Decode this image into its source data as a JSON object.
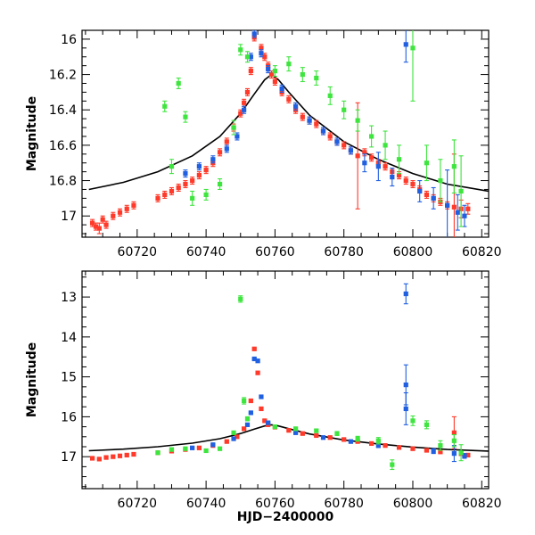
{
  "chart_data": [
    {
      "type": "scatter",
      "panel": "top",
      "title": "",
      "xlabel": "",
      "ylabel": "Magnitude",
      "xlim": [
        60704,
        60822
      ],
      "ylim": [
        17.12,
        15.95
      ],
      "y_inverted": true,
      "x_ticks": [
        60720,
        60740,
        60760,
        60780,
        60800,
        60820
      ],
      "y_ticks": [
        16,
        16.2,
        16.4,
        16.6,
        16.8,
        17
      ],
      "y_tick_labels": [
        "16",
        "16.2",
        "16.4",
        "16.6",
        "16.8",
        "17"
      ],
      "grid": false,
      "legend": "none",
      "model_curve": {
        "color": "#000000",
        "x": [
          60706,
          60716,
          60726,
          60736,
          60744,
          60750,
          60754,
          60757,
          60759,
          60761,
          60764,
          60770,
          60780,
          60790,
          60800,
          60810,
          60822
        ],
        "y": [
          16.85,
          16.81,
          16.75,
          16.66,
          16.55,
          16.42,
          16.31,
          16.23,
          16.2,
          16.23,
          16.3,
          16.43,
          16.58,
          16.68,
          16.76,
          16.82,
          16.86
        ]
      },
      "series": [
        {
          "color": "#ff3a2a",
          "x": [
            60707,
            60708,
            60709,
            60710,
            60711,
            60713,
            60715,
            60717,
            60719,
            60726,
            60728,
            60730,
            60732,
            60734,
            60736,
            60738,
            60740,
            60742,
            60744,
            60746,
            60748,
            60750,
            60751,
            60752,
            60753,
            60754,
            60756,
            60757,
            60758,
            60759,
            60760,
            60762,
            60764,
            60766,
            60768,
            60770,
            60772,
            60774,
            60776,
            60778,
            60780,
            60782,
            60784,
            60786,
            60788,
            60790,
            60792,
            60794,
            60796,
            60798,
            60800,
            60802,
            60804,
            60806,
            60808,
            60810,
            60812,
            60814,
            60816
          ],
          "y": [
            17.04,
            17.06,
            17.07,
            17.02,
            17.05,
            17.0,
            16.98,
            16.96,
            16.94,
            16.9,
            16.88,
            16.86,
            16.84,
            16.82,
            16.8,
            16.77,
            16.74,
            16.7,
            16.64,
            16.58,
            16.5,
            16.42,
            16.36,
            16.3,
            16.18,
            15.99,
            16.05,
            16.1,
            16.15,
            16.2,
            16.24,
            16.3,
            16.34,
            16.4,
            16.44,
            16.46,
            16.48,
            16.52,
            16.55,
            16.58,
            16.6,
            16.63,
            16.66,
            16.64,
            16.67,
            16.7,
            16.72,
            16.75,
            16.77,
            16.8,
            16.82,
            16.85,
            16.88,
            16.9,
            16.92,
            16.94,
            16.95,
            16.96,
            16.96
          ],
          "err": [
            0.02,
            0.02,
            0.03,
            0.02,
            0.02,
            0.02,
            0.02,
            0.02,
            0.02,
            0.02,
            0.02,
            0.02,
            0.02,
            0.02,
            0.02,
            0.02,
            0.02,
            0.02,
            0.02,
            0.02,
            0.02,
            0.02,
            0.02,
            0.02,
            0.02,
            0.02,
            0.02,
            0.02,
            0.02,
            0.02,
            0.02,
            0.02,
            0.02,
            0.02,
            0.02,
            0.02,
            0.02,
            0.02,
            0.02,
            0.02,
            0.02,
            0.02,
            0.3,
            0.02,
            0.02,
            0.02,
            0.02,
            0.02,
            0.02,
            0.02,
            0.02,
            0.02,
            0.02,
            0.02,
            0.02,
            0.02,
            0.3,
            0.05,
            0.03
          ]
        },
        {
          "color": "#1f5fe0",
          "x": [
            60734,
            60738,
            60742,
            60746,
            60749,
            60751,
            60753,
            60754,
            60756,
            60758,
            60762,
            60766,
            60770,
            60774,
            60778,
            60782,
            60786,
            60790,
            60794,
            60798,
            60802,
            60806,
            60810,
            60813,
            60815
          ],
          "y": [
            16.76,
            16.72,
            16.68,
            16.62,
            16.55,
            16.4,
            16.1,
            15.97,
            16.08,
            16.17,
            16.28,
            16.38,
            16.46,
            16.52,
            16.58,
            16.63,
            16.7,
            16.72,
            16.78,
            16.03,
            16.86,
            16.9,
            16.94,
            16.98,
            17.0
          ],
          "err": [
            0.02,
            0.02,
            0.02,
            0.02,
            0.02,
            0.02,
            0.02,
            0.02,
            0.02,
            0.02,
            0.02,
            0.02,
            0.02,
            0.02,
            0.02,
            0.02,
            0.05,
            0.08,
            0.05,
            0.1,
            0.06,
            0.06,
            0.2,
            0.1,
            0.06
          ]
        },
        {
          "color": "#3fe53f",
          "x": [
            60728,
            60730,
            60732,
            60734,
            60736,
            60740,
            60744,
            60748,
            60750,
            60752,
            60760,
            60764,
            60768,
            60772,
            60776,
            60780,
            60784,
            60788,
            60792,
            60796,
            60800,
            60804,
            60808,
            60812,
            60814
          ],
          "y": [
            16.38,
            16.72,
            16.25,
            16.44,
            16.9,
            16.88,
            16.82,
            16.5,
            16.06,
            16.1,
            16.18,
            16.14,
            16.2,
            16.22,
            16.32,
            16.4,
            16.46,
            16.55,
            16.6,
            16.68,
            16.05,
            16.7,
            16.8,
            16.72,
            16.86
          ],
          "err": [
            0.03,
            0.04,
            0.03,
            0.03,
            0.04,
            0.03,
            0.03,
            0.04,
            0.03,
            0.03,
            0.03,
            0.04,
            0.04,
            0.04,
            0.05,
            0.05,
            0.06,
            0.06,
            0.08,
            0.08,
            0.3,
            0.1,
            0.12,
            0.15,
            0.2
          ]
        }
      ]
    },
    {
      "type": "scatter",
      "panel": "bottom",
      "title": "",
      "xlabel": "HJD−2400000",
      "ylabel": "Magnitude",
      "xlim": [
        60704,
        60822
      ],
      "ylim": [
        17.8,
        12.35
      ],
      "y_inverted": true,
      "x_ticks": [
        60720,
        60740,
        60760,
        60780,
        60800,
        60820
      ],
      "y_ticks": [
        13,
        14,
        15,
        16,
        17
      ],
      "y_tick_labels": [
        "13",
        "14",
        "15",
        "16",
        "17"
      ],
      "grid": false,
      "legend": "none",
      "model_curve": {
        "color": "#000000",
        "x": [
          60706,
          60716,
          60726,
          60736,
          60744,
          60750,
          60754,
          60757,
          60759,
          60761,
          60764,
          60770,
          60780,
          60790,
          60800,
          60810,
          60822
        ],
        "y": [
          16.85,
          16.81,
          16.75,
          16.66,
          16.55,
          16.42,
          16.31,
          16.23,
          16.2,
          16.23,
          16.3,
          16.43,
          16.58,
          16.68,
          16.76,
          16.82,
          16.86
        ]
      },
      "series": [
        {
          "color": "#ff3a2a",
          "x": [
            60707,
            60709,
            60711,
            60713,
            60715,
            60717,
            60719,
            60726,
            60730,
            60734,
            60738,
            60742,
            60746,
            60749,
            60751,
            60753,
            60754,
            60755,
            60756,
            60757,
            60758,
            60760,
            60764,
            60768,
            60772,
            60776,
            60780,
            60784,
            60788,
            60792,
            60796,
            60800,
            60804,
            60808,
            60812,
            60814,
            60816
          ],
          "y": [
            17.04,
            17.06,
            17.02,
            17.0,
            16.98,
            16.96,
            16.94,
            16.9,
            16.86,
            16.82,
            16.78,
            16.72,
            16.62,
            16.5,
            16.3,
            15.6,
            14.3,
            14.9,
            15.8,
            16.1,
            16.2,
            16.26,
            16.34,
            16.42,
            16.47,
            16.52,
            16.57,
            16.62,
            16.67,
            16.72,
            16.77,
            16.8,
            16.84,
            16.88,
            16.4,
            16.92,
            16.96
          ],
          "err": [
            0.02,
            0.02,
            0.02,
            0.02,
            0.02,
            0.02,
            0.02,
            0.02,
            0.02,
            0.02,
            0.02,
            0.02,
            0.02,
            0.02,
            0.02,
            0.02,
            0.02,
            0.02,
            0.02,
            0.02,
            0.02,
            0.02,
            0.02,
            0.02,
            0.02,
            0.02,
            0.02,
            0.02,
            0.02,
            0.02,
            0.02,
            0.02,
            0.02,
            0.02,
            0.4,
            0.05,
            0.03
          ]
        },
        {
          "color": "#1f5fe0",
          "x": [
            60736,
            60742,
            60748,
            60752,
            60753,
            60754,
            60755,
            60756,
            60758,
            60766,
            60774,
            60782,
            60790,
            60798,
            60798,
            60798,
            60806,
            60812,
            60815
          ],
          "y": [
            16.78,
            16.7,
            16.55,
            16.2,
            15.9,
            14.55,
            14.6,
            15.5,
            16.15,
            16.4,
            16.52,
            16.62,
            16.72,
            12.92,
            15.2,
            15.8,
            16.86,
            16.92,
            16.98
          ],
          "err": [
            0.02,
            0.02,
            0.02,
            0.02,
            0.02,
            0.02,
            0.02,
            0.02,
            0.02,
            0.02,
            0.02,
            0.03,
            0.05,
            0.25,
            0.5,
            0.4,
            0.06,
            0.2,
            0.06
          ]
        },
        {
          "color": "#3fe53f",
          "x": [
            60726,
            60730,
            60734,
            60740,
            60744,
            60748,
            60750,
            60751,
            60752,
            60760,
            60766,
            60772,
            60778,
            60784,
            60790,
            60794,
            60800,
            60804,
            60808,
            60812,
            60814
          ],
          "y": [
            16.9,
            16.82,
            16.8,
            16.85,
            16.8,
            16.4,
            13.05,
            15.6,
            16.05,
            16.25,
            16.3,
            16.35,
            16.42,
            16.55,
            16.6,
            17.2,
            16.1,
            16.2,
            16.72,
            16.6,
            16.9
          ],
          "err": [
            0.03,
            0.03,
            0.03,
            0.03,
            0.03,
            0.04,
            0.08,
            0.08,
            0.05,
            0.03,
            0.03,
            0.04,
            0.05,
            0.06,
            0.08,
            0.12,
            0.12,
            0.1,
            0.12,
            0.15,
            0.2
          ]
        }
      ]
    }
  ]
}
